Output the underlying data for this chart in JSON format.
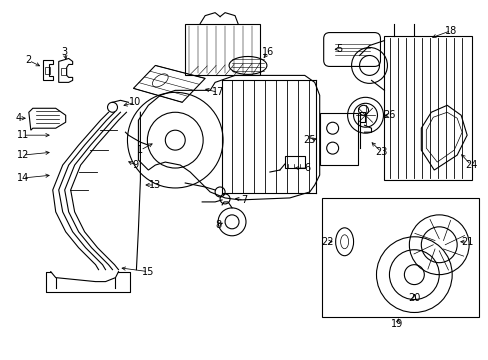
{
  "bg_color": "#ffffff",
  "line_color": "#000000",
  "text_color": "#000000",
  "figsize": [
    4.89,
    3.6
  ],
  "dpi": 100
}
